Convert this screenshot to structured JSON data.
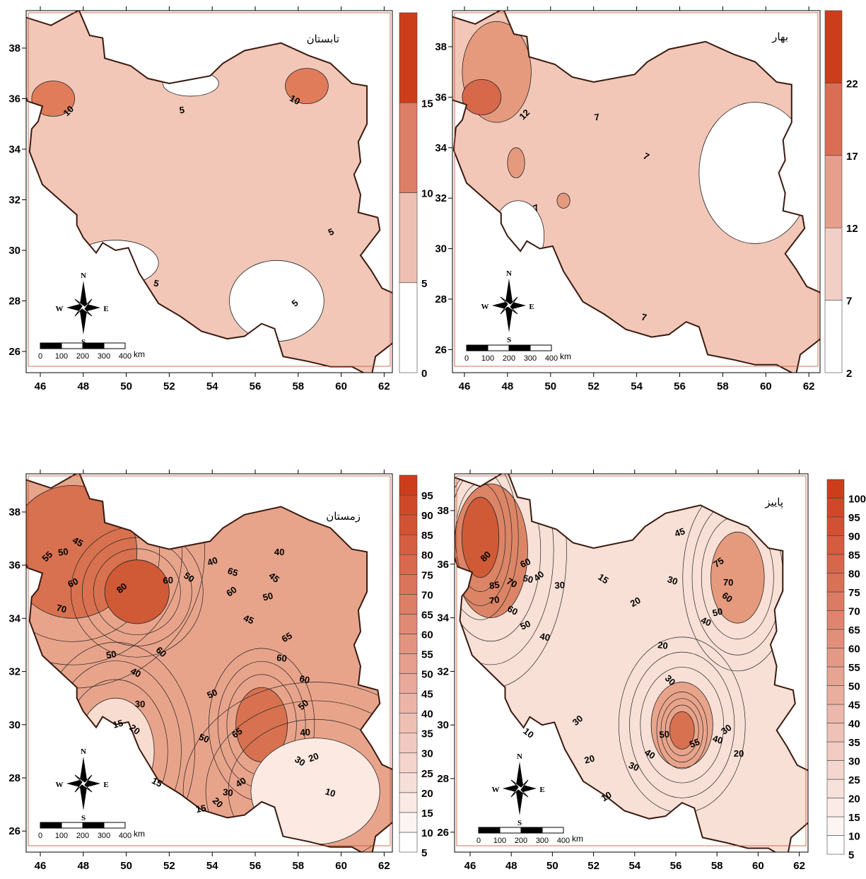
{
  "panels": [
    {
      "title": "تابستان",
      "colorbar_ticks": [
        0,
        5,
        10,
        15
      ],
      "contour_labels": [
        10,
        5,
        10,
        5,
        5,
        5
      ]
    },
    {
      "title": "بهار",
      "colorbar_ticks": [
        2,
        7,
        12,
        17,
        22
      ],
      "contour_labels": [
        12,
        7,
        7,
        7,
        7
      ]
    },
    {
      "title": "زمستان",
      "colorbar_ticks": [
        5,
        10,
        15,
        20,
        25,
        30,
        35,
        40,
        45,
        50,
        55,
        60,
        65,
        70,
        75,
        80,
        85,
        90,
        95
      ],
      "contour_labels": [
        55,
        50,
        45,
        60,
        70,
        80,
        60,
        50,
        40,
        65,
        60,
        40,
        45,
        50,
        45,
        65,
        60,
        60,
        50,
        40,
        50,
        60,
        50,
        40,
        30,
        20,
        10,
        65,
        30,
        20,
        15,
        50,
        40,
        30,
        20,
        15,
        15
      ]
    },
    {
      "title": "پاییز",
      "colorbar_ticks": [
        5,
        10,
        15,
        20,
        25,
        30,
        35,
        40,
        45,
        50,
        55,
        60,
        65,
        70,
        75,
        80,
        85,
        90,
        95,
        100
      ],
      "contour_labels": [
        80,
        85,
        70,
        60,
        50,
        40,
        30,
        15,
        45,
        30,
        75,
        70,
        60,
        50,
        40,
        20,
        20,
        30,
        70,
        60,
        50,
        40,
        30,
        50,
        40,
        55,
        40,
        30,
        20,
        10,
        20,
        30,
        10
      ]
    }
  ],
  "x_ticks": [
    46,
    48,
    50,
    52,
    54,
    56,
    58,
    60,
    62
  ],
  "y_ticks": [
    26,
    28,
    30,
    32,
    34,
    36,
    38
  ],
  "compass": {
    "n": "N",
    "s": "S",
    "e": "E",
    "w": "W"
  },
  "scale_bar": {
    "ticks": [
      0,
      100,
      200,
      300,
      400
    ],
    "unit": "km"
  }
}
